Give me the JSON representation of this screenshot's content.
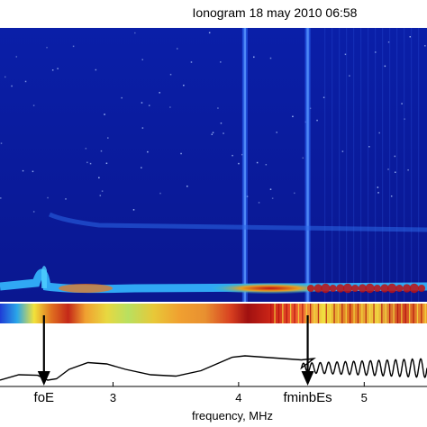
{
  "chart_data": [
    {
      "type": "heatmap",
      "title": "Ionogram 18 may 2010 06:58",
      "xlim": [
        2.1,
        5.5
      ],
      "echo_trace": {
        "name": "",
        "x": [
          2.1,
          2.3,
          2.5,
          2.6,
          2.7,
          3.0,
          3.5,
          3.8,
          4.0,
          4.2,
          4.4,
          4.6,
          4.8,
          5.0,
          5.2,
          5.5
        ]
      },
      "vertical_lines": [
        4.05,
        4.55
      ]
    },
    {
      "type": "line",
      "xlabel": "frequency, MHz",
      "xlim": [
        2.1,
        5.5
      ],
      "x_ticks": [
        "3",
        "4",
        "5"
      ],
      "x_tick_values": [
        3,
        4,
        5
      ],
      "x": [
        2.1,
        2.25,
        2.4,
        2.48,
        2.55,
        2.65,
        2.8,
        2.95,
        3.1,
        3.3,
        3.5,
        3.7,
        3.85,
        3.95,
        4.05,
        4.2,
        4.35,
        4.5,
        4.6
      ],
      "y": [
        0.1,
        0.3,
        0.28,
        0.1,
        0.15,
        0.5,
        0.75,
        0.7,
        0.5,
        0.3,
        0.25,
        0.45,
        0.75,
        0.95,
        1.0,
        0.95,
        0.9,
        0.85,
        0.9
      ],
      "oscillation": {
        "x_start": 4.5,
        "x_end": 5.5,
        "center": 0.55,
        "amplitude": 0.35,
        "cycles": 15
      },
      "annotations": [
        {
          "label": "foE",
          "x": 2.45
        },
        {
          "label": "fminbEs",
          "x": 4.55
        }
      ]
    }
  ]
}
